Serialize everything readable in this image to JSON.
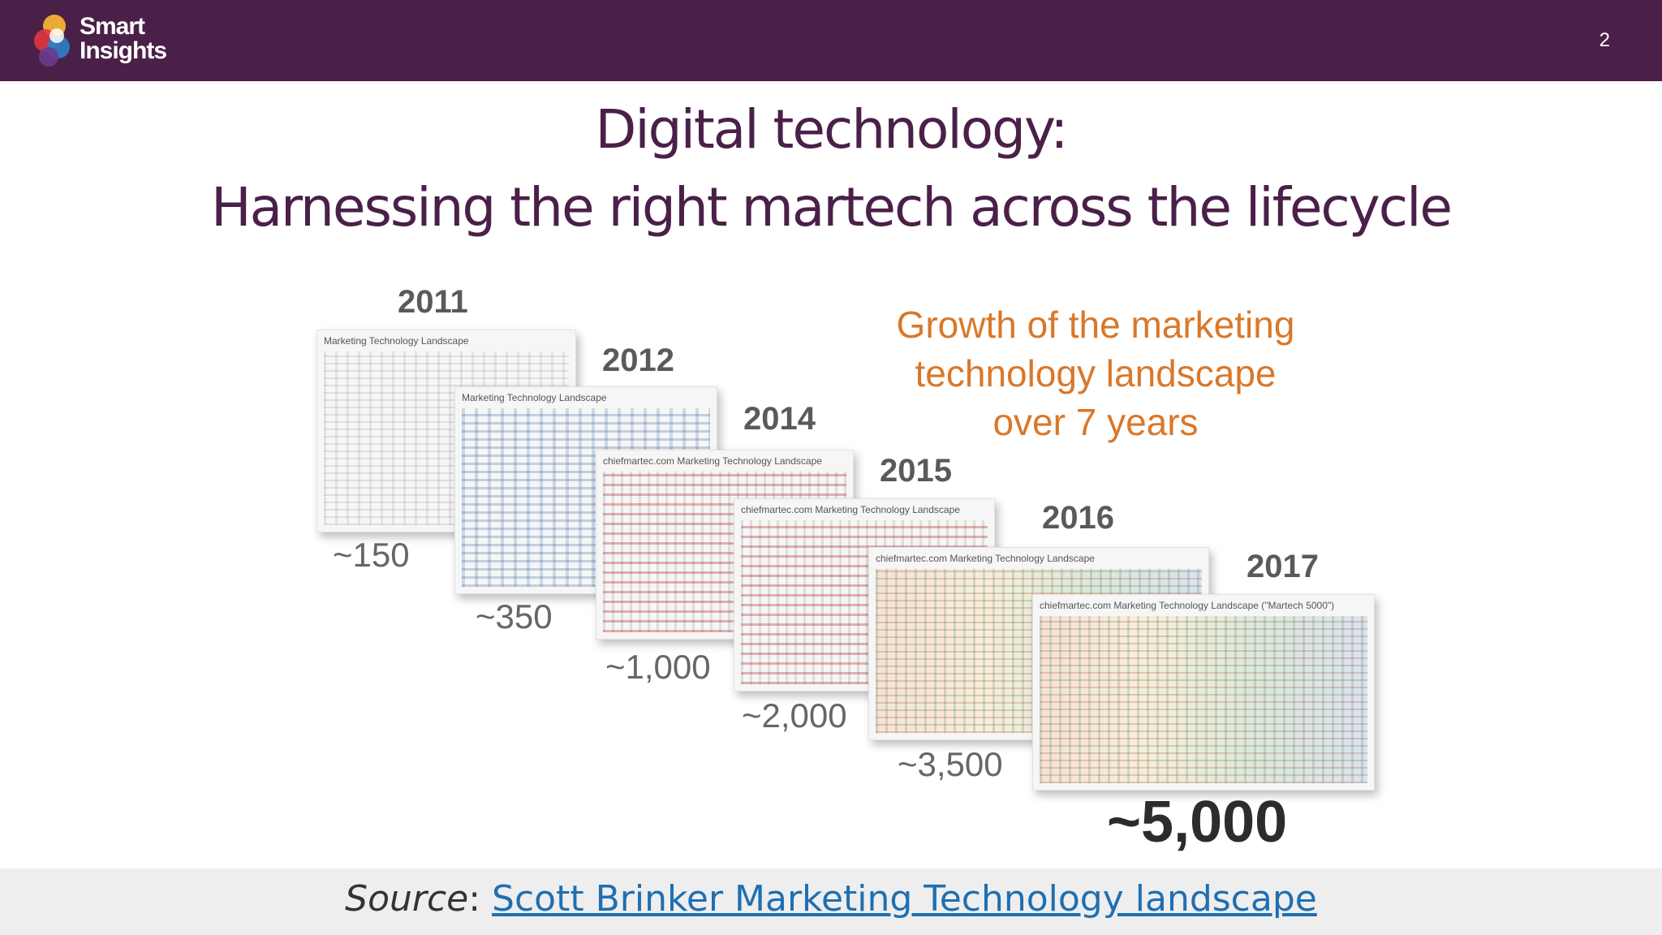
{
  "header": {
    "logo_line1": "Smart",
    "logo_line2": "Insights",
    "page_number": "2",
    "bar_color": "#4a2048"
  },
  "title": {
    "line1": "Digital technology:",
    "line2": "Harnessing the right martech across the lifecycle"
  },
  "figure": {
    "growth_text_line1": "Growth of the marketing",
    "growth_text_line2": "technology landscape",
    "growth_text_line3": "over 7 years",
    "landscapes": [
      {
        "year": "2011",
        "count": "~150",
        "card_title": "Marketing Technology Landscape"
      },
      {
        "year": "2012",
        "count": "~350",
        "card_title": "Marketing Technology Landscape"
      },
      {
        "year": "2014",
        "count": "~1,000",
        "card_title": "chiefmartec.com Marketing Technology Landscape"
      },
      {
        "year": "2015",
        "count": "~2,000",
        "card_title": "chiefmartec.com Marketing Technology Landscape"
      },
      {
        "year": "2016",
        "count": "~3,500",
        "card_title": "chiefmartec.com Marketing Technology Landscape"
      },
      {
        "year": "2017",
        "count": "~5,000",
        "card_title": "chiefmartec.com Marketing Technology Landscape (\"Martech 5000\")"
      }
    ]
  },
  "footer": {
    "source_label": "Source",
    "separator": ": ",
    "link_text": "Scott Brinker Marketing Technology landscape"
  }
}
